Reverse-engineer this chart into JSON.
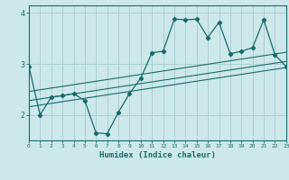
{
  "xlabel": "Humidex (Indice chaleur)",
  "ylabel": "",
  "bg_color": "#cce8ea",
  "line_color": "#1a6b6b",
  "grid_color": "#aacfd2",
  "x_data": [
    0,
    1,
    2,
    3,
    4,
    5,
    6,
    7,
    8,
    9,
    10,
    11,
    12,
    13,
    14,
    15,
    16,
    17,
    18,
    19,
    20,
    21,
    22,
    23
  ],
  "y_data": [
    2.95,
    2.0,
    2.35,
    2.38,
    2.42,
    2.28,
    1.65,
    1.63,
    2.05,
    2.42,
    2.72,
    3.22,
    3.25,
    3.88,
    3.87,
    3.88,
    3.52,
    3.82,
    3.2,
    3.25,
    3.32,
    3.87,
    3.18,
    2.95
  ],
  "ylim": [
    1.5,
    4.15
  ],
  "xlim": [
    0,
    23
  ],
  "trend_offsets": [
    0.18,
    0.0,
    -0.12
  ],
  "trend_slope_start": 2.28,
  "trend_slope_end": 3.05
}
